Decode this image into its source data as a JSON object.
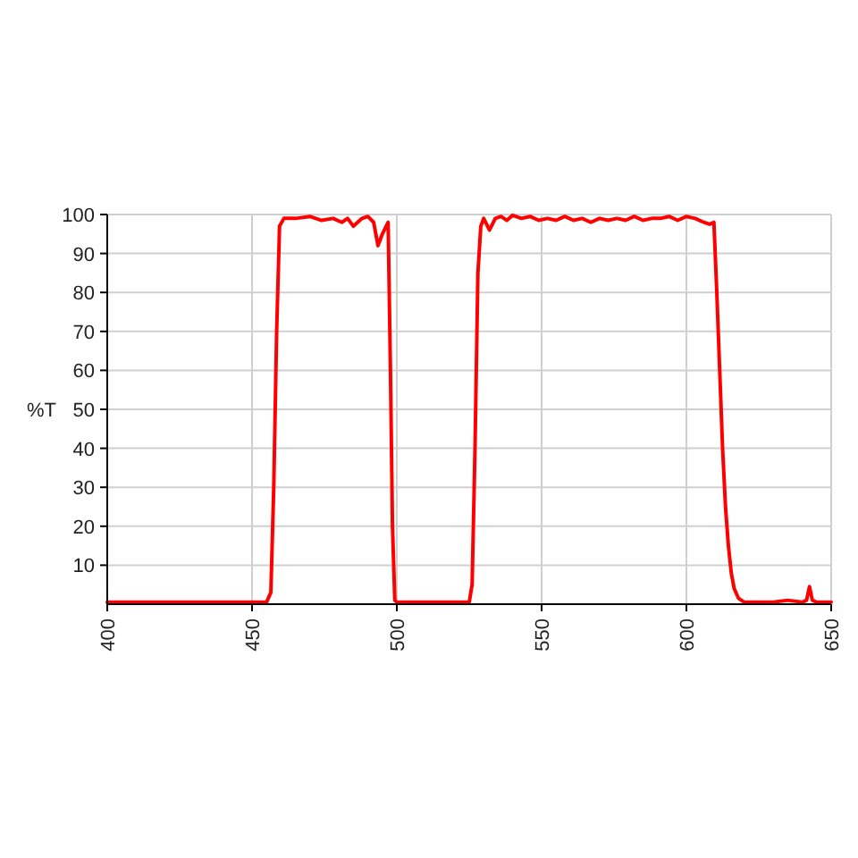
{
  "chart_data": {
    "type": "line",
    "ylabel": "%T",
    "xlim": [
      400,
      650
    ],
    "ylim": [
      0,
      100
    ],
    "xticks": [
      400,
      450,
      500,
      550,
      600,
      650
    ],
    "yticks": [
      10,
      20,
      30,
      40,
      50,
      60,
      70,
      80,
      90,
      100
    ],
    "grid": true,
    "marker": "none",
    "line_style": "solid",
    "series": [
      {
        "color": "#ff0000",
        "x": [
          400,
          455,
          456.5,
          457.5,
          458.5,
          459.5,
          461,
          465,
          470,
          474,
          478,
          481,
          483,
          485,
          488,
          490,
          492,
          493.5,
          495,
          497,
          497.8,
          498.5,
          499.3,
          500,
          505,
          515,
          525,
          526,
          527,
          528,
          529,
          530,
          532,
          534,
          536,
          538,
          540,
          543,
          546,
          549,
          552,
          555,
          558,
          561,
          564,
          567,
          570,
          573,
          576,
          579,
          582,
          585,
          588,
          591,
          594,
          597,
          600,
          603,
          606,
          608,
          609.5,
          610.5,
          611.5,
          612.5,
          613.5,
          614.5,
          615.5,
          616.5,
          618,
          620,
          625,
          630,
          635,
          640,
          641.5,
          642.5,
          643.5,
          645,
          650
        ],
        "values": [
          0.5,
          0.5,
          3,
          30,
          70,
          97,
          99,
          99,
          99.5,
          98.5,
          99,
          98,
          99,
          97,
          99,
          99.5,
          98,
          92,
          95,
          98,
          60,
          20,
          1,
          0.5,
          0.5,
          0.5,
          0.5,
          5,
          40,
          85,
          97,
          99,
          96,
          99,
          99.5,
          98.5,
          99.8,
          99,
          99.5,
          98.5,
          99,
          98.5,
          99.5,
          98.5,
          99,
          98,
          99,
          98.5,
          99,
          98.5,
          99.5,
          98.5,
          99,
          99,
          99.5,
          98.5,
          99.5,
          99,
          98,
          97.5,
          98,
          80,
          60,
          40,
          25,
          15,
          8,
          4,
          1.5,
          0.5,
          0.5,
          0.5,
          1,
          0.5,
          1,
          4.5,
          1,
          0.5,
          0.5
        ]
      }
    ]
  }
}
